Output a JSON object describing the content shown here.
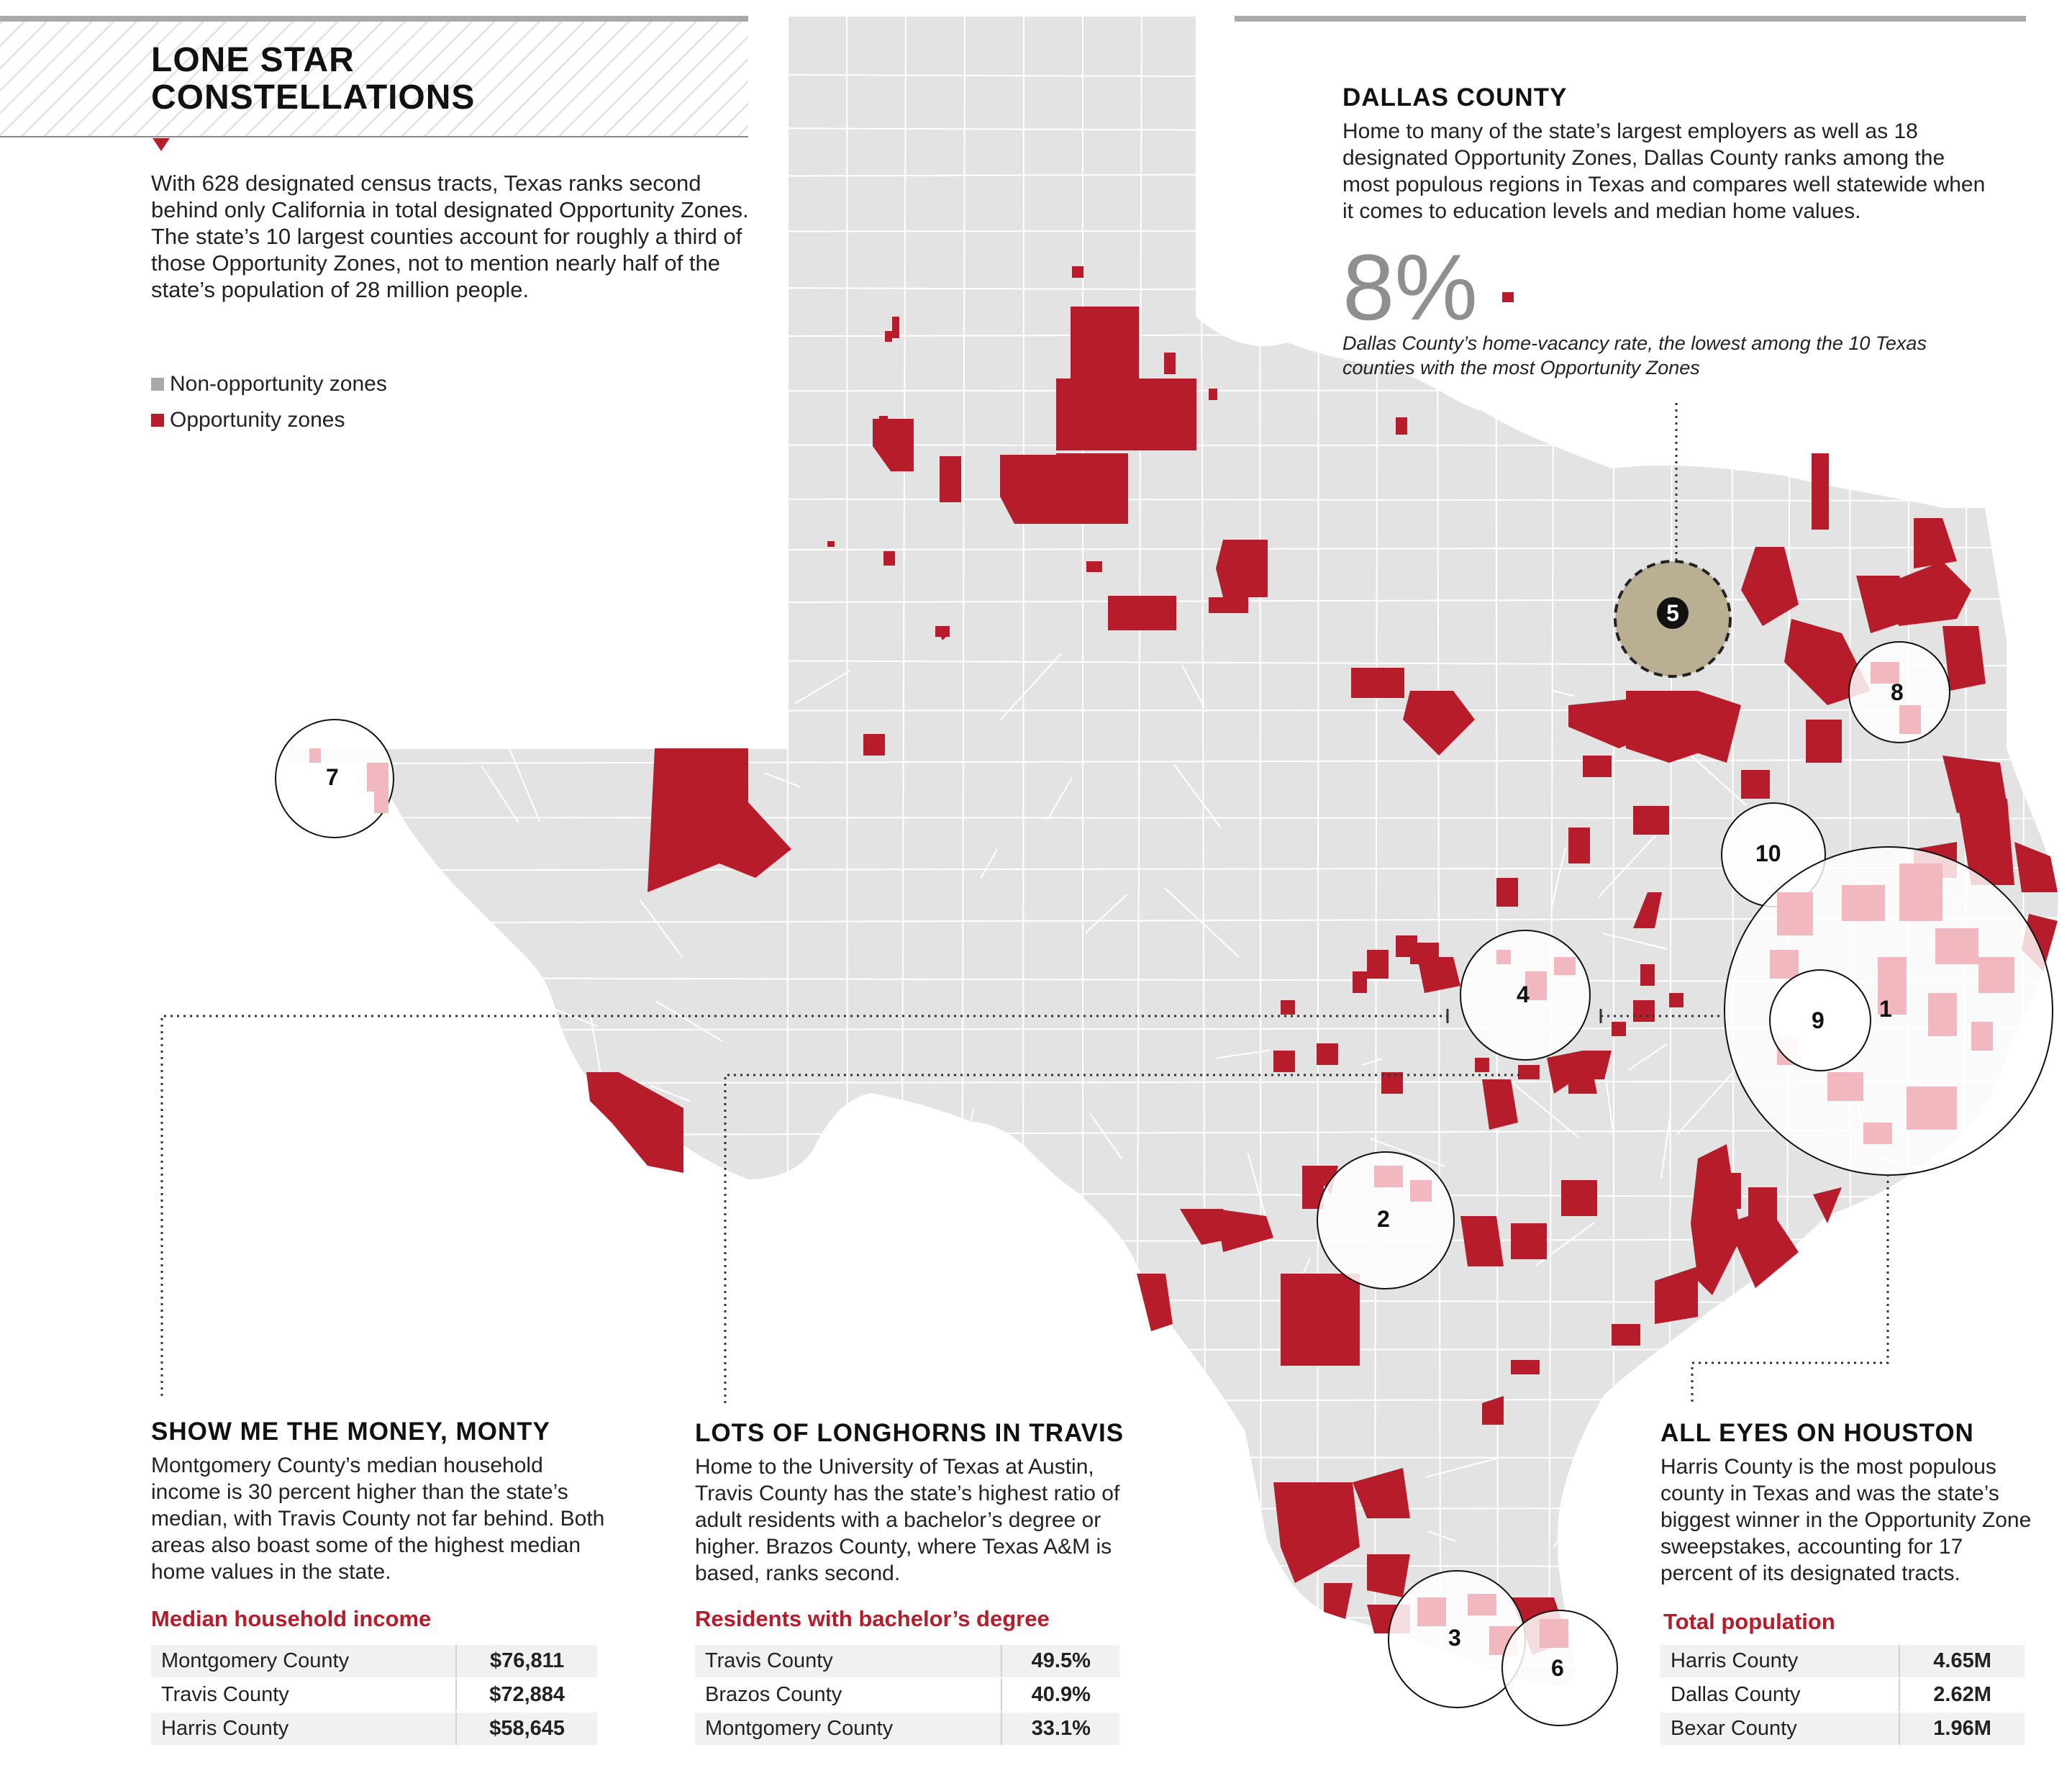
{
  "header": {
    "title_line1": "LONE STAR",
    "title_line2": "CONSTELLATIONS",
    "intro": "With 628 designated census tracts, Texas ranks second behind only California in total designated Opportunity Zones. The state’s 10 largest counties account for roughly a third of those Opportunity Zones, not to mention nearly half of the state’s population of 28 million people."
  },
  "legend": {
    "non_opportunity": "Non-opportunity zones",
    "opportunity": "Opportunity zones",
    "non_color": "#a9a9a9",
    "opp_color": "#b71c2b"
  },
  "dallas": {
    "title": "DALLAS COUNTY",
    "body": "Home to many of the state’s largest employers as well as 18 designated Opportunity Zones, Dallas County ranks among the most populous regions in Texas and compares well statewide when it comes to education levels and median home values.",
    "stat": "8%",
    "stat_note": "Dallas County’s home-vacancy rate, the lowest among the 10 Texas counties with the most Opportunity Zones"
  },
  "money": {
    "title": "SHOW ME THE MONEY, MONTY",
    "body": "Montgomery County’s median household income is 30 percent higher than the state’s median, with Travis County not far behind. Both areas also boast some of the highest median home values in the state.",
    "table_title": "Median household income",
    "rows": [
      {
        "county": "Montgomery County",
        "value": "$76,811"
      },
      {
        "county": "Travis County",
        "value": "$72,884"
      },
      {
        "county": "Harris County",
        "value": "$58,645"
      }
    ]
  },
  "longhorns": {
    "title": "LOTS OF LONGHORNS IN TRAVIS",
    "body": "Home to the University of Texas at Austin, Travis County has the state’s highest ratio of adult residents with a bachelor’s degree or higher. Brazos County, where Texas A&M is based, ranks second.",
    "table_title": "Residents with bachelor’s degree",
    "rows": [
      {
        "county": "Travis County",
        "value": "49.5%"
      },
      {
        "county": "Brazos County",
        "value": "40.9%"
      },
      {
        "county": "Montgomery County",
        "value": "33.1%"
      }
    ]
  },
  "houston": {
    "title": "ALL EYES ON HOUSTON",
    "body": "Harris County is the most populous county in Texas and was the state’s biggest winner in the Opportunity Zone sweepstakes, accounting for 17 percent of its designated tracts.",
    "table_title": "Total population",
    "rows": [
      {
        "county": "Harris County",
        "value": "4.65M"
      },
      {
        "county": "Dallas County",
        "value": "2.62M"
      },
      {
        "county": "Bexar County",
        "value": "1.96M"
      }
    ]
  },
  "circles": {
    "c1": "1",
    "c2": "2",
    "c3": "3",
    "c4": "4",
    "c5": "5",
    "c6": "6",
    "c7": "7",
    "c8": "8",
    "c9": "9",
    "c10": "10"
  }
}
